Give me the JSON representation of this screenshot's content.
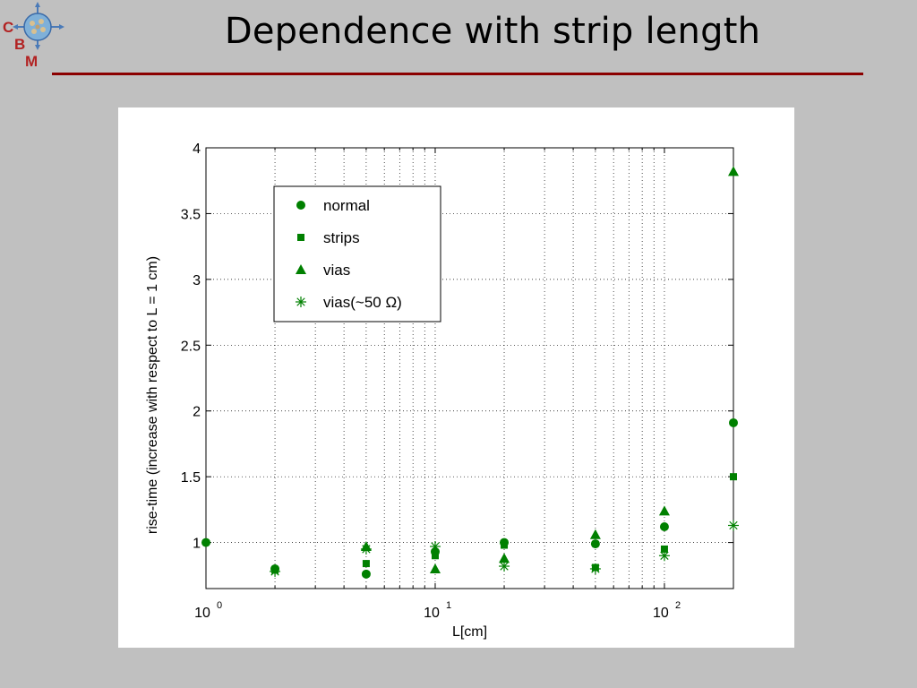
{
  "slide": {
    "title": "Dependence with strip length",
    "logo_letters": [
      "C",
      "B",
      "M"
    ]
  },
  "chart_data": {
    "type": "scatter",
    "xscale": "log",
    "xlim": [
      1,
      200
    ],
    "ylim": [
      0.65,
      4
    ],
    "xlabel": "L[cm]",
    "ylabel": "rise-time (increase with respect to L = 1 cm)",
    "grid": true,
    "legend_position": "top-left",
    "x_ticks": [
      {
        "value": 1,
        "base": "10",
        "exp": "0"
      },
      {
        "value": 10,
        "base": "10",
        "exp": "1"
      },
      {
        "value": 100,
        "base": "10",
        "exp": "2"
      }
    ],
    "y_ticks": [
      {
        "value": 1,
        "label": "1"
      },
      {
        "value": 1.5,
        "label": "1.5"
      },
      {
        "value": 2,
        "label": "2"
      },
      {
        "value": 2.5,
        "label": "2.5"
      },
      {
        "value": 3,
        "label": "3"
      },
      {
        "value": 3.5,
        "label": "3.5"
      },
      {
        "value": 4,
        "label": "4"
      }
    ],
    "series_color": "#008000",
    "series": [
      {
        "name": "normal",
        "marker": "circle",
        "x": [
          1,
          2,
          5,
          10,
          20,
          50,
          100,
          200
        ],
        "y": [
          1.0,
          0.8,
          0.76,
          0.93,
          1.0,
          0.99,
          1.12,
          1.91
        ]
      },
      {
        "name": "strips",
        "marker": "square",
        "x": [
          2,
          5,
          10,
          20,
          50,
          100,
          200
        ],
        "y": [
          0.79,
          0.84,
          0.9,
          0.98,
          0.81,
          0.95,
          1.5
        ]
      },
      {
        "name": "vias",
        "marker": "triangle",
        "x": [
          5,
          10,
          20,
          50,
          100,
          200
        ],
        "y": [
          0.97,
          0.8,
          0.88,
          1.06,
          1.24,
          3.82
        ]
      },
      {
        "name": "vias(~50 Ω)",
        "marker": "asterisk",
        "x": [
          2,
          5,
          10,
          20,
          50,
          100,
          200
        ],
        "y": [
          0.78,
          0.95,
          0.97,
          0.82,
          0.8,
          0.9,
          1.13
        ]
      }
    ]
  }
}
